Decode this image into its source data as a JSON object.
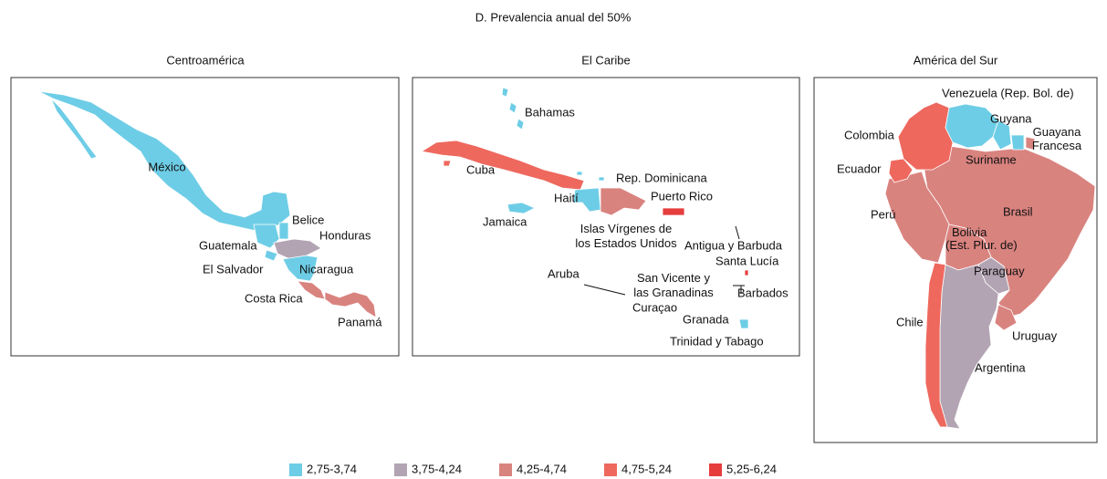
{
  "title": "D. Prevalencia anual del 50%",
  "panels": [
    {
      "title": "Centroamérica",
      "labels": [
        "México",
        "Belice",
        "Honduras",
        "Guatemala",
        "El Salvador",
        "Nicaragua",
        "Costa Rica",
        "Panamá"
      ]
    },
    {
      "title": "El Caribe",
      "labels": [
        "Bahamas",
        "Cuba",
        "Rep. Dominicana",
        "Haití",
        "Puerto Rico",
        "Jamaica",
        [
          "Islas Vírgenes de",
          "los Estados Unidos"
        ],
        "Antigua y Barbuda",
        "Santa Lucía",
        "Aruba",
        [
          "San Vicente y",
          "las Granadinas"
        ],
        "Barbados",
        "Curaçao",
        "Granada",
        "Trinidad y Tabago"
      ]
    },
    {
      "title": "América del Sur",
      "labels": [
        "Venezuela (Rep. Bol. de)",
        "Guyana",
        "Colombia",
        [
          "Guayana",
          "Francesa"
        ],
        "Ecuador",
        "Suriname",
        "Perú",
        "Brasil",
        [
          "Bolivia",
          "(Est. Plur. de)"
        ],
        "Paraguay",
        "Chile",
        "Uruguay",
        "Argentina"
      ]
    }
  ],
  "legend": [
    {
      "label": "2,75-3,74",
      "color": "#6ecde6"
    },
    {
      "label": "3,75-4,24",
      "color": "#b3a4b3"
    },
    {
      "label": "4,25-4,74",
      "color": "#d9837f"
    },
    {
      "label": "4,75-5,24",
      "color": "#ee685e"
    },
    {
      "label": "5,25-6,24",
      "color": "#e63d3d"
    }
  ]
}
